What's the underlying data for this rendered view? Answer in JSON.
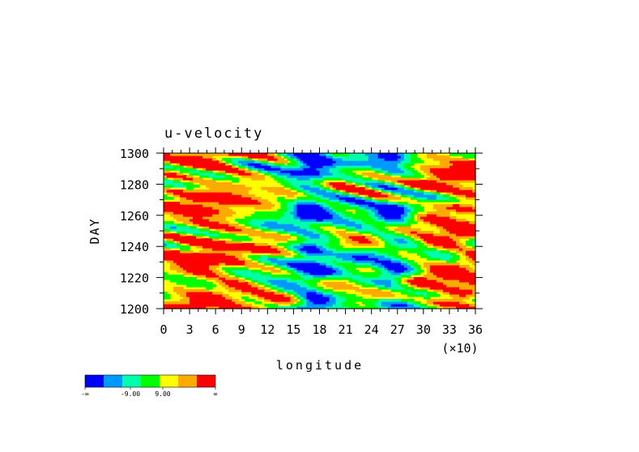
{
  "chart_data": {
    "type": "heatmap",
    "title": "u-velocity",
    "xlabel": "longitude",
    "ylabel": "DAY",
    "x_scale_note": "(×10)",
    "xlim": [
      0,
      36
    ],
    "ylim": [
      1200,
      1300
    ],
    "x_ticks": [
      "0",
      "3",
      "6",
      "9",
      "12",
      "15",
      "18",
      "21",
      "24",
      "27",
      "30",
      "33",
      "36"
    ],
    "y_ticks": [
      "1200",
      "1220",
      "1240",
      "1260",
      "1280",
      "1300"
    ],
    "colorbar": {
      "colors": [
        "#0000ff",
        "#0099ff",
        "#00ffaa",
        "#00ff00",
        "#ffff00",
        "#ffaa00",
        "#ff0000"
      ],
      "labels": [
        "-∞",
        "-9.00",
        "9.00",
        "∞"
      ]
    },
    "field_description": "Hovmöller field of u-velocity versus longitude and day; diagonal eastward-propagating bands, red/orange (positive) dominant near longitudes 0–12 and 30–36, blue/cyan (negative) columns near longitudes 16–18 and 26–28."
  }
}
